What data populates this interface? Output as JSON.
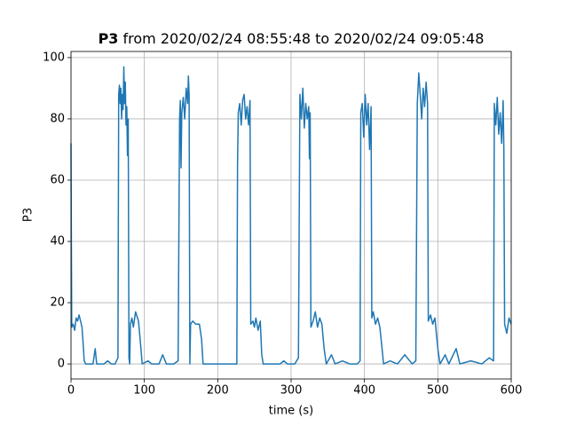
{
  "chart_data": {
    "type": "line",
    "title": {
      "variable": "P3",
      "text": "from 2020/02/24 08:55:48 to 2020/02/24 09:05:48"
    },
    "xlabel": "time (s)",
    "ylabel": "P3",
    "xlim": [
      0,
      600
    ],
    "ylim": [
      -4.9,
      102.0
    ],
    "xticks": [
      0,
      100,
      200,
      300,
      400,
      500,
      600
    ],
    "yticks": [
      0,
      20,
      40,
      60,
      80,
      100
    ],
    "grid": true,
    "series": [
      {
        "color": "#1f77b4",
        "x": [
          0,
          0.5,
          1,
          3,
          5,
          7,
          9,
          11,
          13,
          15,
          17,
          18,
          20,
          25,
          30,
          33,
          35,
          45,
          50,
          55,
          60,
          64,
          65,
          66,
          67,
          68,
          69,
          70,
          71,
          72,
          73,
          74,
          75,
          76,
          77,
          78,
          79,
          80,
          81,
          83,
          85,
          88,
          92,
          95,
          97,
          105,
          110,
          120,
          125,
          130,
          140,
          146,
          148,
          149,
          150,
          151,
          153,
          155,
          157,
          159,
          160,
          161,
          162,
          163,
          166,
          170,
          175,
          178,
          180,
          190,
          200,
          210,
          220,
          226,
          227,
          228,
          230,
          232,
          234,
          236,
          238,
          240,
          242,
          244,
          245,
          248,
          250,
          252,
          255,
          258,
          260,
          262,
          275,
          285,
          290,
          295,
          305,
          310,
          312,
          314,
          316,
          318,
          320,
          322,
          324,
          325,
          326,
          327,
          330,
          333,
          336,
          339,
          342,
          345,
          348,
          355,
          360,
          370,
          380,
          390,
          394,
          395,
          397,
          399,
          401,
          403,
          405,
          407,
          409,
          410,
          412,
          415,
          418,
          421,
          424,
          426,
          435,
          445,
          455,
          465,
          470,
          472,
          474,
          476,
          478,
          480,
          482,
          484,
          486,
          487,
          490,
          493,
          496,
          500,
          503,
          510,
          515,
          525,
          530,
          545,
          560,
          570,
          576,
          577,
          579,
          581,
          583,
          585,
          587,
          589,
          590,
          591,
          594,
          597,
          600
        ],
        "values": [
          72,
          40,
          12,
          13,
          11,
          15,
          14,
          16,
          14,
          12,
          5,
          1,
          0,
          0,
          0,
          5,
          0,
          0,
          1,
          0,
          0,
          2,
          88,
          91,
          85,
          90,
          80,
          88,
          83,
          97,
          85,
          92,
          78,
          84,
          68,
          80,
          2,
          0,
          13,
          15,
          12,
          17,
          14,
          6,
          0,
          1,
          0,
          0,
          3,
          0,
          0,
          1,
          80,
          86,
          64,
          82,
          87,
          80,
          90,
          85,
          94,
          88,
          0,
          13,
          14,
          13,
          13,
          8,
          0,
          0,
          0,
          0,
          0,
          0,
          65,
          82,
          85,
          78,
          86,
          88,
          80,
          84,
          78,
          86,
          13,
          14,
          12,
          15,
          11,
          14,
          3,
          0,
          0,
          0,
          1,
          0,
          0,
          2,
          88,
          80,
          90,
          77,
          85,
          80,
          84,
          67,
          82,
          12,
          14,
          17,
          12,
          15,
          13,
          5,
          0,
          3,
          0,
          1,
          0,
          0,
          1,
          82,
          85,
          74,
          88,
          78,
          85,
          70,
          84,
          15,
          17,
          13,
          15,
          12,
          5,
          0,
          1,
          0,
          3,
          0,
          1,
          85,
          95,
          88,
          80,
          90,
          84,
          92,
          85,
          14,
          16,
          13,
          15,
          5,
          0,
          3,
          0,
          5,
          0,
          1,
          0,
          2,
          1,
          85,
          78,
          87,
          75,
          82,
          72,
          86,
          70,
          13,
          10,
          15,
          13
        ]
      }
    ]
  }
}
